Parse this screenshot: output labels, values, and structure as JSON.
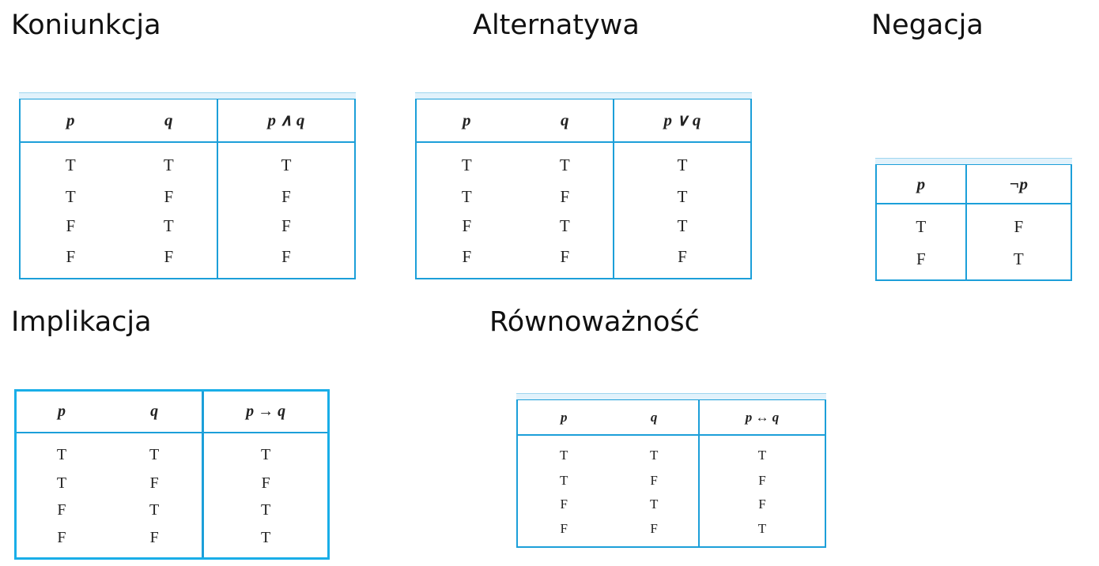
{
  "conjunction": {
    "title": "Koniunkcja",
    "headers": [
      "p",
      "q",
      "p ∧ q"
    ],
    "rows": [
      [
        "T",
        "T",
        "T"
      ],
      [
        "T",
        "F",
        "F"
      ],
      [
        "F",
        "T",
        "F"
      ],
      [
        "F",
        "F",
        "F"
      ]
    ]
  },
  "disjunction": {
    "title": "Alternatywa",
    "headers": [
      "p",
      "q",
      "p ∨ q"
    ],
    "rows": [
      [
        "T",
        "T",
        "T"
      ],
      [
        "T",
        "F",
        "T"
      ],
      [
        "F",
        "T",
        "T"
      ],
      [
        "F",
        "F",
        "F"
      ]
    ]
  },
  "negation": {
    "title": "Negacja",
    "headers": [
      "p",
      "¬p"
    ],
    "rows": [
      [
        "T",
        "F"
      ],
      [
        "F",
        "T"
      ]
    ]
  },
  "implication": {
    "title": "Implikacja",
    "headers": [
      "p",
      "q",
      "p → q"
    ],
    "rows": [
      [
        "T",
        "T",
        "T"
      ],
      [
        "T",
        "F",
        "F"
      ],
      [
        "F",
        "T",
        "T"
      ],
      [
        "F",
        "F",
        "T"
      ]
    ]
  },
  "equivalence": {
    "title": "Równoważność",
    "headers": [
      "p",
      "q",
      "p ↔ q"
    ],
    "rows": [
      [
        "T",
        "T",
        "T"
      ],
      [
        "T",
        "F",
        "F"
      ],
      [
        "F",
        "T",
        "F"
      ],
      [
        "F",
        "F",
        "T"
      ]
    ]
  },
  "colors": {
    "border": "#1c9fd9",
    "band": "#e2f2fb"
  }
}
